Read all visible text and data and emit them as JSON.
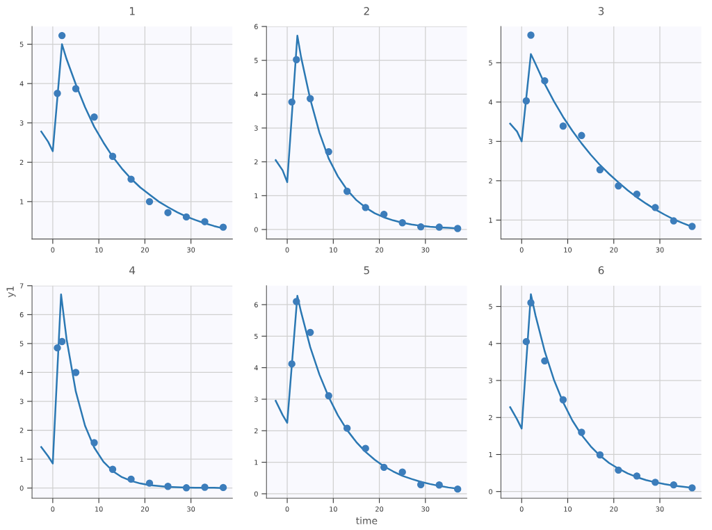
{
  "chart_data": [
    {
      "type": "scatter",
      "title": "1",
      "xlim": [
        -4.5,
        39
      ],
      "xticks": [
        0,
        10,
        20,
        30
      ],
      "ylim": [
        0.05,
        5.45
      ],
      "yticks": [
        1,
        2,
        3,
        4,
        5
      ],
      "grid": true,
      "series": [
        {
          "color": "#3c7dbb",
          "marker": "circle",
          "x": [
            1,
            2,
            5,
            9,
            13,
            17,
            21,
            25,
            29,
            33,
            37
          ],
          "values": [
            3.75,
            5.22,
            3.87,
            3.15,
            2.15,
            1.57,
            1.0,
            0.72,
            0.61,
            0.49,
            0.35
          ]
        },
        {
          "type": "line",
          "color": "#2b78b3",
          "x": [
            -2.5,
            -1,
            0,
            2,
            3,
            5,
            7,
            9,
            11,
            13,
            15,
            17,
            19,
            21,
            23,
            25,
            27,
            29,
            31,
            33,
            35,
            37
          ],
          "values": [
            2.78,
            2.52,
            2.28,
            5.0,
            4.62,
            3.98,
            3.4,
            2.9,
            2.5,
            2.14,
            1.84,
            1.58,
            1.36,
            1.18,
            1.0,
            0.86,
            0.73,
            0.62,
            0.53,
            0.45,
            0.38,
            0.32
          ]
        }
      ]
    },
    {
      "type": "scatter",
      "title": "2",
      "xlim": [
        -4.5,
        39
      ],
      "xticks": [
        0,
        10,
        20,
        30
      ],
      "ylim": [
        -0.28,
        6
      ],
      "yticks": [
        0,
        1,
        2,
        3,
        4,
        5,
        6
      ],
      "grid": true,
      "series": [
        {
          "color": "#3c7dbb",
          "marker": "circle",
          "x": [
            1,
            2,
            5,
            9,
            13,
            17,
            21,
            25,
            29,
            33,
            37
          ],
          "values": [
            3.77,
            5.02,
            3.87,
            2.3,
            1.13,
            0.65,
            0.45,
            0.2,
            0.08,
            0.07,
            0.03
          ]
        },
        {
          "type": "line",
          "color": "#2b78b3",
          "x": [
            -2.5,
            -1,
            0,
            2.2,
            3,
            5,
            7,
            9,
            11,
            13,
            15,
            17,
            19,
            21,
            23,
            25,
            27,
            29,
            31,
            33,
            35,
            37
          ],
          "values": [
            2.05,
            1.75,
            1.4,
            5.73,
            5.1,
            3.85,
            2.86,
            2.1,
            1.57,
            1.17,
            0.87,
            0.65,
            0.48,
            0.36,
            0.27,
            0.2,
            0.15,
            0.11,
            0.08,
            0.06,
            0.05,
            0.03
          ]
        }
      ]
    },
    {
      "type": "scatter",
      "title": "3",
      "xlim": [
        -4.5,
        39
      ],
      "xticks": [
        0,
        10,
        20,
        30
      ],
      "ylim": [
        0.52,
        5.92
      ],
      "yticks": [
        1,
        2,
        3,
        4,
        5
      ],
      "grid": true,
      "series": [
        {
          "color": "#3c7dbb",
          "marker": "circle",
          "x": [
            1,
            2,
            5,
            9,
            13,
            17,
            21,
            25,
            29,
            33,
            37
          ],
          "values": [
            4.03,
            5.7,
            4.54,
            3.39,
            3.15,
            2.28,
            1.87,
            1.66,
            1.32,
            0.98,
            0.84
          ]
        },
        {
          "type": "line",
          "color": "#2b78b3",
          "x": [
            -2.5,
            -1,
            0,
            2,
            3,
            5,
            7,
            9,
            11,
            13,
            15,
            17,
            19,
            21,
            23,
            25,
            27,
            29,
            31,
            33,
            35,
            37
          ],
          "values": [
            3.45,
            3.25,
            3.0,
            5.22,
            4.97,
            4.46,
            4.02,
            3.62,
            3.27,
            2.95,
            2.66,
            2.4,
            2.17,
            1.96,
            1.76,
            1.58,
            1.42,
            1.27,
            1.14,
            1.02,
            0.92,
            0.83
          ]
        }
      ]
    },
    {
      "type": "scatter",
      "title": "4",
      "ylabel": "y1",
      "xlim": [
        -4.5,
        39
      ],
      "xticks": [
        0,
        10,
        20,
        30
      ],
      "ylim": [
        -0.35,
        7
      ],
      "yticks": [
        0,
        1,
        2,
        3,
        4,
        5,
        6,
        7
      ],
      "grid": true,
      "series": [
        {
          "color": "#3c7dbb",
          "marker": "circle",
          "x": [
            1,
            2,
            5,
            9,
            13,
            17,
            21,
            25,
            29,
            33,
            37
          ],
          "values": [
            4.85,
            5.07,
            4.0,
            1.57,
            0.65,
            0.31,
            0.17,
            0.06,
            0.01,
            0.03,
            0.02
          ]
        },
        {
          "type": "line",
          "color": "#2b78b3",
          "x": [
            -2.5,
            -1,
            0,
            1.8,
            3,
            5,
            7,
            9,
            11,
            13,
            15,
            17,
            19,
            21,
            23,
            25,
            27,
            29,
            31,
            33,
            35,
            37
          ],
          "values": [
            1.42,
            1.1,
            0.85,
            6.7,
            5.15,
            3.34,
            2.16,
            1.4,
            0.91,
            0.59,
            0.38,
            0.25,
            0.16,
            0.1,
            0.07,
            0.04,
            0.03,
            0.02,
            0.01,
            0.01,
            0.01,
            0.0
          ]
        }
      ]
    },
    {
      "type": "scatter",
      "title": "5",
      "xlabel": "time",
      "xlim": [
        -4.5,
        39
      ],
      "xticks": [
        0,
        10,
        20,
        30
      ],
      "ylim": [
        -0.14,
        6.6
      ],
      "yticks": [
        0,
        1,
        2,
        3,
        4,
        5,
        6
      ],
      "grid": true,
      "series": [
        {
          "color": "#3c7dbb",
          "marker": "circle",
          "x": [
            1,
            2,
            5,
            9,
            13,
            17,
            21,
            25,
            29,
            33,
            37
          ],
          "values": [
            4.12,
            6.1,
            5.12,
            3.11,
            2.08,
            1.44,
            0.84,
            0.69,
            0.29,
            0.28,
            0.15
          ]
        },
        {
          "type": "line",
          "color": "#2b78b3",
          "x": [
            -2.5,
            -1,
            0,
            2.2,
            3,
            5,
            7,
            9,
            11,
            13,
            15,
            17,
            19,
            21,
            23,
            25,
            27,
            29,
            31,
            33,
            35,
            37
          ],
          "values": [
            2.95,
            2.5,
            2.25,
            6.28,
            5.77,
            4.65,
            3.78,
            3.07,
            2.49,
            2.02,
            1.64,
            1.33,
            1.08,
            0.87,
            0.71,
            0.57,
            0.47,
            0.38,
            0.31,
            0.25,
            0.2,
            0.16
          ]
        }
      ]
    },
    {
      "type": "scatter",
      "title": "6",
      "xlim": [
        -4.5,
        39
      ],
      "xticks": [
        0,
        10,
        20,
        30
      ],
      "ylim": [
        -0.18,
        5.56
      ],
      "yticks": [
        0,
        1,
        2,
        3,
        4,
        5
      ],
      "grid": true,
      "series": [
        {
          "color": "#3c7dbb",
          "marker": "circle",
          "x": [
            1,
            2,
            5,
            9,
            13,
            17,
            21,
            25,
            29,
            33,
            37
          ],
          "values": [
            4.05,
            5.1,
            3.53,
            2.48,
            1.6,
            0.99,
            0.58,
            0.42,
            0.25,
            0.18,
            0.1
          ]
        },
        {
          "type": "line",
          "color": "#2b78b3",
          "x": [
            -2.5,
            -1,
            0,
            2,
            3,
            5,
            7,
            9,
            11,
            13,
            15,
            17,
            19,
            21,
            23,
            25,
            27,
            29,
            31,
            33,
            35,
            37
          ],
          "values": [
            2.28,
            1.95,
            1.7,
            5.33,
            4.76,
            3.79,
            3.02,
            2.41,
            1.92,
            1.53,
            1.22,
            0.97,
            0.77,
            0.62,
            0.49,
            0.39,
            0.31,
            0.25,
            0.2,
            0.16,
            0.13,
            0.1
          ]
        }
      ]
    }
  ]
}
